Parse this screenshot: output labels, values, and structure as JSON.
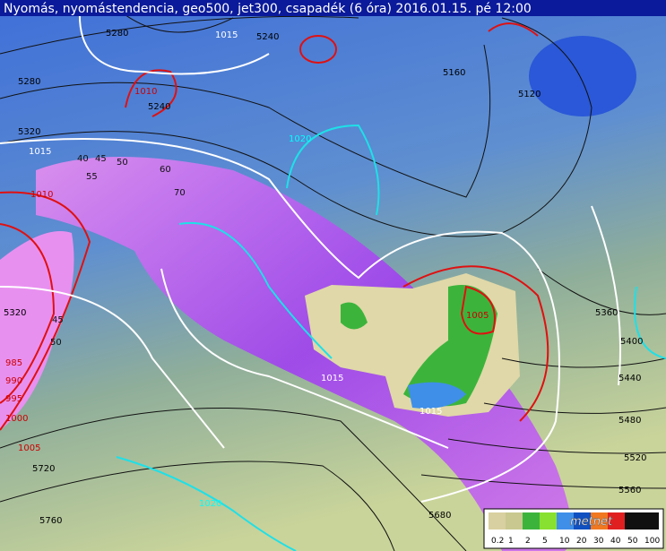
{
  "title": "Nyomás, nyomástendencia, geo500, jet300, csapadék (6 óra) 2016.01.15. pé 12:00",
  "contour_labels": [
    "1015",
    "1010",
    "1015",
    "1010",
    "1020",
    "1005",
    "1015",
    "1015",
    "1020",
    "1005",
    "1000",
    "995",
    "990",
    "985",
    "5280",
    "5240",
    "5240",
    "5280",
    "5320",
    "5160",
    "5120",
    "5360",
    "5400",
    "5440",
    "5480",
    "5520",
    "5560",
    "5720",
    "5760",
    "5680",
    "5320",
    "40",
    "45",
    "50",
    "55",
    "60",
    "70",
    "45",
    "50"
  ],
  "legend": {
    "labels": [
      "0.2",
      "1",
      "2",
      "5",
      "10",
      "20",
      "30",
      "40",
      "50",
      "100"
    ]
  },
  "logo": "metnet"
}
